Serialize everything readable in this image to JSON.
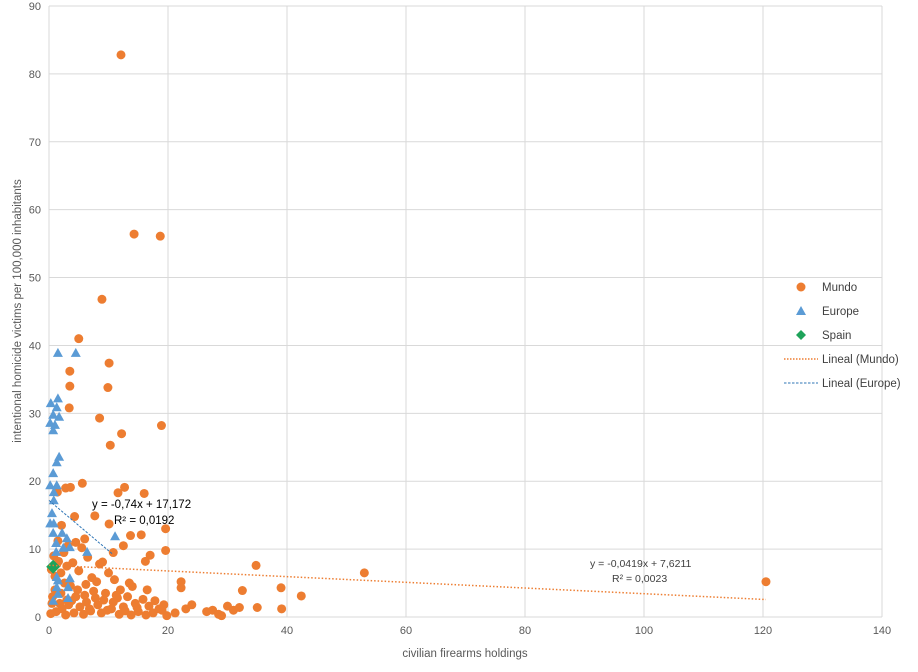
{
  "chart_data": {
    "type": "scatter",
    "xlabel": "civilian firearms holdings",
    "ylabel": "intentional homicide victims per 100,000 inhabitants",
    "xlim": [
      0,
      140
    ],
    "ylim": [
      0,
      90
    ],
    "xticks": [
      0,
      20,
      40,
      60,
      80,
      100,
      120,
      140
    ],
    "yticks": [
      0,
      10,
      20,
      30,
      40,
      50,
      60,
      70,
      80,
      90
    ],
    "grid": true,
    "legend_position": "right",
    "colors": {
      "mundo": "#ED7D31",
      "europe": "#5B9BD5",
      "spain": "#1FA35A"
    },
    "series": [
      {
        "name": "Mundo",
        "marker": "circle",
        "points": [
          [
            12.1,
            82.8
          ],
          [
            14.3,
            56.4
          ],
          [
            18.7,
            56.1
          ],
          [
            8.9,
            46.8
          ],
          [
            5.0,
            41.0
          ],
          [
            10.1,
            37.4
          ],
          [
            3.5,
            36.2
          ],
          [
            3.5,
            34.0
          ],
          [
            9.9,
            33.8
          ],
          [
            3.4,
            30.8
          ],
          [
            8.5,
            29.3
          ],
          [
            18.9,
            28.2
          ],
          [
            12.2,
            27.0
          ],
          [
            10.3,
            25.3
          ],
          [
            5.6,
            19.7
          ],
          [
            16.0,
            18.2
          ],
          [
            12.7,
            19.1
          ],
          [
            11.6,
            18.3
          ],
          [
            2.8,
            19.0
          ],
          [
            3.6,
            19.1
          ],
          [
            1.4,
            18.4
          ],
          [
            7.7,
            14.9
          ],
          [
            19.6,
            13.0
          ],
          [
            10.1,
            13.7
          ],
          [
            15.5,
            12.1
          ],
          [
            13.7,
            12.0
          ],
          [
            4.3,
            14.8
          ],
          [
            2.1,
            13.5
          ],
          [
            6.0,
            11.5
          ],
          [
            4.5,
            11.0
          ],
          [
            3.2,
            10.5
          ],
          [
            5.5,
            10.2
          ],
          [
            1.5,
            11.2
          ],
          [
            2.5,
            9.5
          ],
          [
            12.5,
            10.5
          ],
          [
            10.8,
            9.5
          ],
          [
            17.0,
            9.1
          ],
          [
            16.2,
            8.2
          ],
          [
            19.6,
            9.8
          ],
          [
            8.5,
            7.8
          ],
          [
            9.0,
            8.1
          ],
          [
            6.5,
            8.8
          ],
          [
            4.0,
            8.0
          ],
          [
            3.0,
            7.5
          ],
          [
            2.0,
            6.5
          ],
          [
            1.0,
            6.0
          ],
          [
            5.0,
            6.8
          ],
          [
            7.2,
            5.8
          ],
          [
            8.0,
            5.2
          ],
          [
            11.0,
            5.5
          ],
          [
            13.5,
            5.0
          ],
          [
            12.0,
            4.0
          ],
          [
            14.0,
            4.5
          ],
          [
            16.5,
            4.0
          ],
          [
            10.0,
            6.5
          ],
          [
            9.5,
            3.5
          ],
          [
            6.0,
            3.2
          ],
          [
            4.5,
            3.0
          ],
          [
            3.0,
            2.5
          ],
          [
            2.0,
            3.5
          ],
          [
            1.0,
            4.0
          ],
          [
            0.5,
            2.0
          ],
          [
            0.3,
            0.5
          ],
          [
            1.2,
            0.8
          ],
          [
            2.2,
            1.2
          ],
          [
            3.3,
            1.8
          ],
          [
            4.2,
            0.6
          ],
          [
            5.2,
            1.5
          ],
          [
            6.3,
            2.2
          ],
          [
            7.0,
            0.9
          ],
          [
            8.2,
            1.8
          ],
          [
            9.2,
            2.5
          ],
          [
            10.5,
            1.2
          ],
          [
            11.5,
            2.8
          ],
          [
            12.5,
            1.5
          ],
          [
            13.2,
            3.0
          ],
          [
            14.5,
            2.0
          ],
          [
            15.0,
            0.8
          ],
          [
            16.8,
            1.6
          ],
          [
            17.5,
            0.6
          ],
          [
            18.5,
            1.2
          ],
          [
            19.3,
            1.8
          ],
          [
            19.8,
            0.2
          ],
          [
            21.2,
            0.6
          ],
          [
            22.2,
            5.2
          ],
          [
            22.2,
            4.3
          ],
          [
            23.0,
            1.2
          ],
          [
            24.0,
            1.8
          ],
          [
            26.5,
            0.8
          ],
          [
            27.5,
            1.0
          ],
          [
            28.5,
            0.4
          ],
          [
            29.0,
            0.2
          ],
          [
            30.0,
            1.6
          ],
          [
            31.0,
            1.0
          ],
          [
            32.0,
            1.4
          ],
          [
            32.5,
            3.9
          ],
          [
            35.0,
            1.4
          ],
          [
            34.8,
            7.6
          ],
          [
            39.0,
            4.3
          ],
          [
            39.1,
            1.2
          ],
          [
            42.4,
            3.1
          ],
          [
            53.0,
            6.5
          ],
          [
            120.5,
            5.2
          ],
          [
            0.6,
            3.0
          ],
          [
            1.8,
            2.0
          ],
          [
            2.8,
            0.3
          ],
          [
            3.8,
            2.4
          ],
          [
            4.8,
            4.0
          ],
          [
            5.8,
            0.4
          ],
          [
            6.8,
            1.2
          ],
          [
            7.8,
            2.8
          ],
          [
            8.8,
            0.6
          ],
          [
            9.8,
            1.0
          ],
          [
            10.8,
            2.2
          ],
          [
            11.8,
            0.4
          ],
          [
            12.8,
            0.9
          ],
          [
            13.8,
            0.3
          ],
          [
            14.8,
            1.4
          ],
          [
            15.8,
            2.6
          ],
          [
            16.3,
            0.3
          ],
          [
            0.4,
            7.0
          ],
          [
            0.8,
            9.0
          ],
          [
            1.6,
            8.2
          ],
          [
            2.6,
            5.0
          ],
          [
            3.6,
            4.6
          ],
          [
            6.2,
            4.8
          ],
          [
            7.5,
            3.8
          ],
          [
            11.3,
            3.2
          ],
          [
            17.8,
            2.4
          ],
          [
            19.0,
            1.0
          ]
        ]
      },
      {
        "name": "Europe",
        "marker": "triangle",
        "points": [
          [
            1.5,
            38.9
          ],
          [
            4.5,
            38.9
          ],
          [
            0.3,
            31.5
          ],
          [
            1.5,
            32.2
          ],
          [
            1.3,
            30.9
          ],
          [
            0.7,
            29.8
          ],
          [
            1.7,
            29.5
          ],
          [
            0.2,
            28.6
          ],
          [
            1.0,
            28.3
          ],
          [
            0.7,
            27.5
          ],
          [
            1.7,
            23.6
          ],
          [
            1.3,
            22.8
          ],
          [
            0.7,
            21.2
          ],
          [
            0.2,
            19.4
          ],
          [
            1.3,
            19.4
          ],
          [
            0.8,
            18.4
          ],
          [
            0.8,
            17.2
          ],
          [
            0.5,
            15.3
          ],
          [
            0.2,
            13.8
          ],
          [
            0.8,
            13.8
          ],
          [
            0.7,
            12.4
          ],
          [
            2.2,
            12.4
          ],
          [
            3.0,
            11.6
          ],
          [
            11.1,
            11.9
          ],
          [
            1.2,
            10.9
          ],
          [
            2.4,
            10.2
          ],
          [
            3.5,
            10.3
          ],
          [
            6.4,
            9.6
          ],
          [
            1.2,
            9.6
          ],
          [
            1.5,
            5.4
          ],
          [
            3.5,
            5.7
          ],
          [
            3.2,
            4.4
          ],
          [
            1.3,
            4.4
          ],
          [
            1.5,
            3.4
          ],
          [
            0.7,
            2.4
          ],
          [
            3.2,
            2.8
          ],
          [
            1.3,
            5.9
          ]
        ]
      },
      {
        "name": "Spain",
        "marker": "diamond",
        "points": [
          [
            0.7,
            7.4
          ]
        ]
      }
    ],
    "trendlines": [
      {
        "name": "Lineal (Mundo)",
        "slope": -0.0419,
        "intercept": 7.6211,
        "x_range": [
          0,
          120.5
        ],
        "equation": "y = -0,0419x + 7,6211",
        "r2": "R² = 0,0023"
      },
      {
        "name": "Lineal (Europe)",
        "slope": -0.74,
        "intercept": 17.172,
        "x_range": [
          0,
          10.6
        ],
        "equation": "y = -0,74x + 17,172",
        "r2": "R² = 0,0192"
      }
    ]
  }
}
